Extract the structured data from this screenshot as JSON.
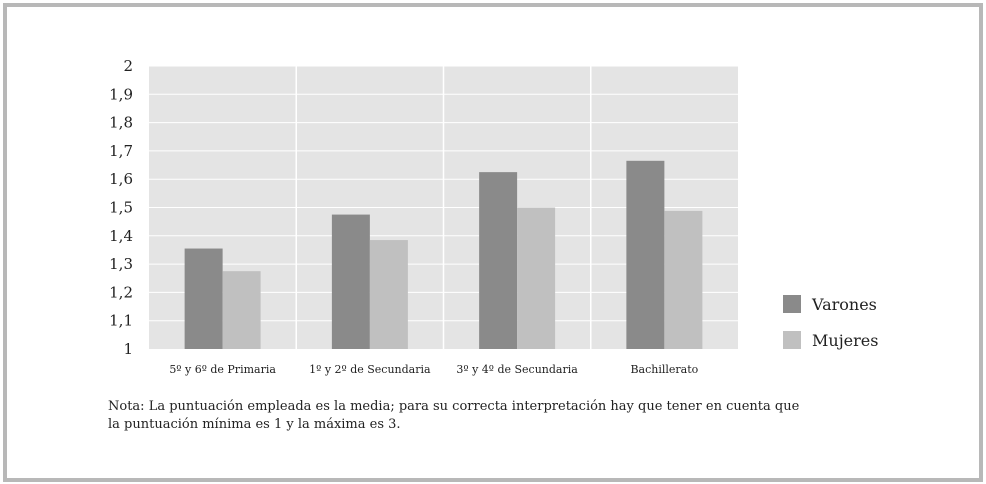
{
  "chart_data": {
    "type": "bar",
    "title": "",
    "xlabel": "",
    "ylabel": "",
    "categories": [
      "5º y 6º de Primaria",
      "1º y 2º de Secundaria",
      "3º y 4º de Secundaria",
      "Bachillerato"
    ],
    "series": [
      {
        "name": "Varones",
        "values": [
          1.355,
          1.475,
          1.625,
          1.665
        ],
        "color": "#8a8a8a"
      },
      {
        "name": "Mujeres",
        "values": [
          1.275,
          1.385,
          1.5,
          1.488
        ],
        "color": "#c0c0c0"
      }
    ],
    "ylim": [
      1,
      2
    ],
    "yticks": [
      "1",
      "1,1",
      "1,2",
      "1,3",
      "1,4",
      "1,5",
      "1,6",
      "1,7",
      "1,8",
      "1,9",
      "2"
    ],
    "grid": true,
    "legend": "right",
    "plot_background": "#e4e4e4",
    "grid_color": "#ffffff"
  },
  "note": {
    "line1": "Nota: La puntuación empleada es la media; para su correcta interpretación hay que tener en cuenta que",
    "line2": "la puntuación mínima es 1 y la máxima es 3."
  }
}
